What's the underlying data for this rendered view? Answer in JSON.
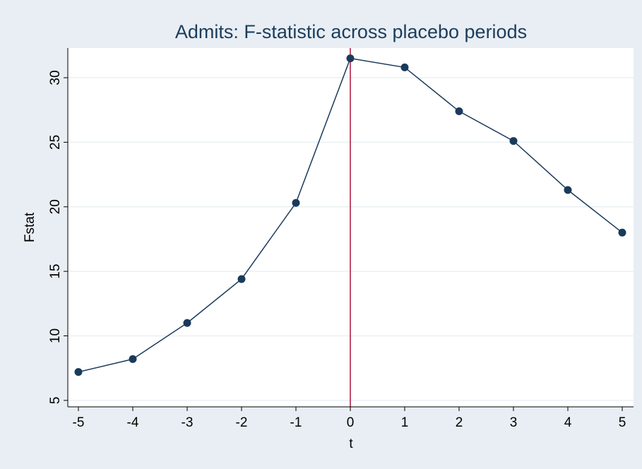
{
  "chart_data": {
    "type": "line",
    "title": "Admits: F-statistic across placebo periods",
    "xlabel": "t",
    "ylabel": "Fstat",
    "x": [
      -5,
      -4,
      -3,
      -2,
      -1,
      0,
      1,
      2,
      3,
      4,
      5
    ],
    "series": [
      {
        "values": [
          7.2,
          8.2,
          11.0,
          14.4,
          20.3,
          31.5,
          30.8,
          27.4,
          25.1,
          21.3,
          18.0
        ]
      }
    ],
    "xlim": [
      -5,
      5
    ],
    "ylim": [
      4.5,
      32.3
    ],
    "xticks": [
      "-5",
      "-4",
      "-3",
      "-2",
      "-1",
      "0",
      "1",
      "2",
      "3",
      "4",
      "5"
    ],
    "yticks": [
      "5",
      "10",
      "15",
      "20",
      "25",
      "30"
    ],
    "vline_x": 0,
    "grid": true,
    "colors": {
      "page_background": "#e8eef3",
      "plot_background": "#ffffff",
      "line": "#1a3a5c",
      "marker": "#1a3a5c",
      "vline": "#b0103a",
      "grid": "#eaf0f4",
      "title": "#1c3d5c"
    }
  }
}
